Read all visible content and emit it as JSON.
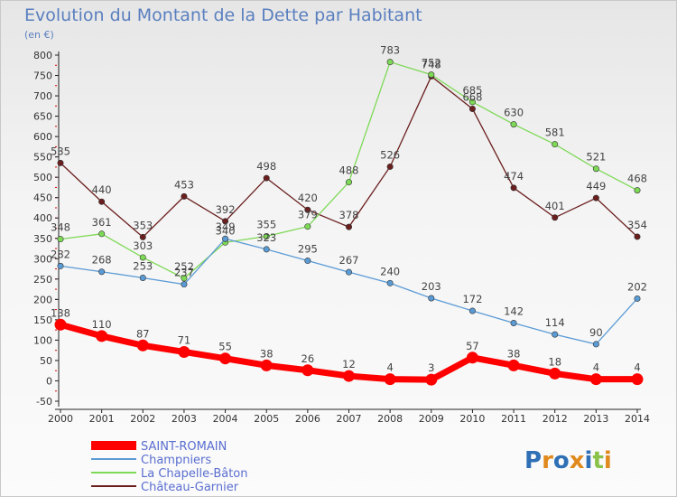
{
  "title": "Evolution du Montant de la Dette par Habitant",
  "unit_label": "(en €)",
  "logo": "Proxiti",
  "chart_data": {
    "type": "line",
    "title": "Evolution du Montant de la Dette par Habitant",
    "subtitle": "(en €)",
    "x": [
      "2000",
      "2001",
      "2002",
      "2003",
      "2004",
      "2005",
      "2006",
      "2007",
      "2008",
      "2009",
      "2010",
      "2011",
      "2012",
      "2013",
      "2014"
    ],
    "ylim": [
      -50,
      800
    ],
    "yticks": [
      -50,
      0,
      50,
      100,
      150,
      200,
      250,
      300,
      350,
      400,
      450,
      500,
      550,
      600,
      650,
      700,
      750,
      800
    ],
    "grid": false,
    "legend_position": "bottom-left",
    "series": [
      {
        "name": "SAINT-ROMAIN",
        "color": "#ff0000",
        "values": [
          138,
          110,
          87,
          71,
          55,
          38,
          26,
          12,
          4,
          3,
          57,
          38,
          18,
          4,
          4
        ]
      },
      {
        "name": "Champniers",
        "color": "#5b9bd5",
        "values": [
          282,
          268,
          253,
          237,
          349,
          323,
          295,
          267,
          240,
          203,
          172,
          142,
          114,
          90,
          202
        ]
      },
      {
        "name": "La Chapelle-Bâton",
        "color": "#7ed956",
        "values": [
          348,
          361,
          303,
          252,
          340,
          355,
          379,
          488,
          783,
          752,
          685,
          630,
          581,
          521,
          468
        ]
      },
      {
        "name": "Château-Garnier",
        "color": "#6b1e1e",
        "values": [
          535,
          440,
          353,
          453,
          392,
          498,
          420,
          378,
          526,
          748,
          668,
          474,
          401,
          449,
          354
        ]
      }
    ]
  }
}
